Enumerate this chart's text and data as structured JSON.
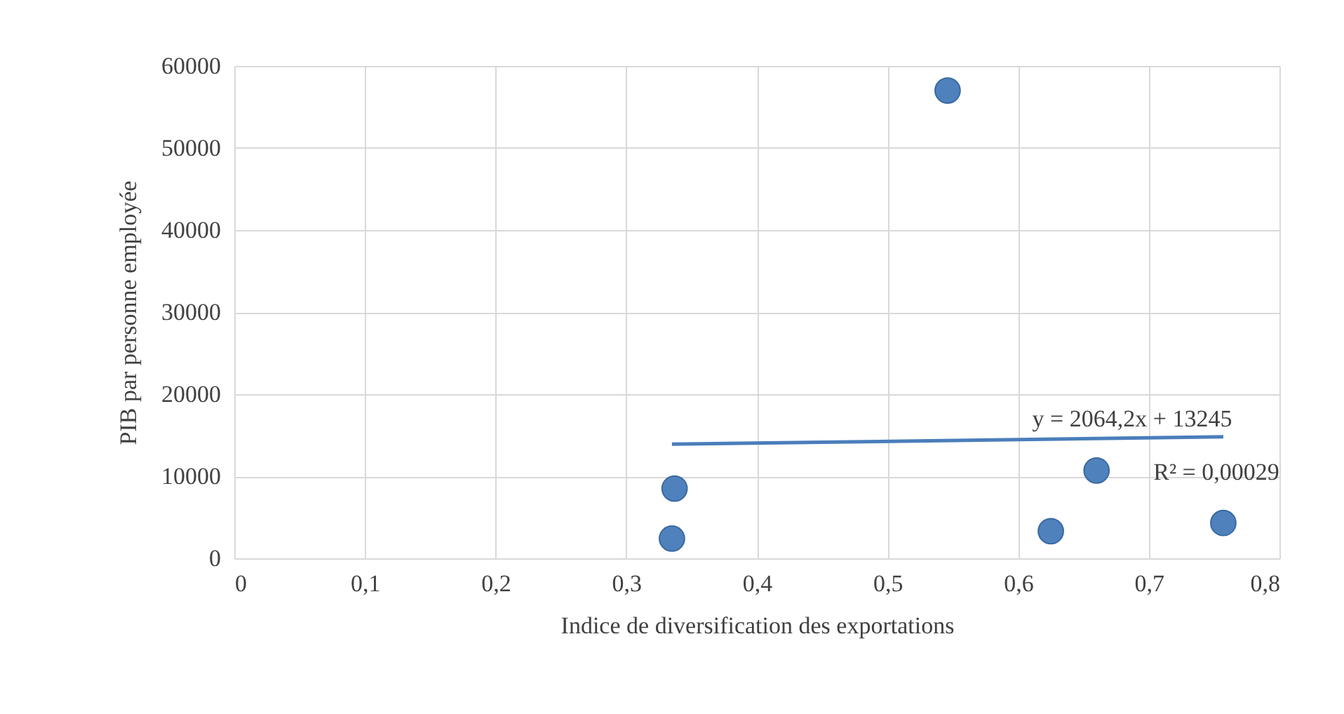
{
  "chart_data": {
    "type": "scatter",
    "xlabel": "Indice de diversification des exportations",
    "ylabel": "PIB par personne employée",
    "xlim": [
      0,
      0.8
    ],
    "xticks": [
      {
        "value": 0,
        "label": "0"
      },
      {
        "value": 0.1,
        "label": "0,1"
      },
      {
        "value": 0.2,
        "label": "0,2"
      },
      {
        "value": 0.3,
        "label": "0,3"
      },
      {
        "value": 0.4,
        "label": "0,4"
      },
      {
        "value": 0.5,
        "label": "0,5"
      },
      {
        "value": 0.6,
        "label": "0,6"
      },
      {
        "value": 0.7,
        "label": "0,7"
      },
      {
        "value": 0.8,
        "label": "0,8"
      }
    ],
    "ylim": [
      0,
      60000
    ],
    "yticks": [
      0,
      10000,
      20000,
      30000,
      40000,
      50000,
      60000
    ],
    "grid": true,
    "series": [
      {
        "color": "#4f81bd",
        "x": [
          0.337,
          0.335,
          0.546,
          0.625,
          0.66,
          0.757
        ],
        "values": [
          8500,
          2400,
          57000,
          3300,
          10700,
          4300
        ]
      },
      {
        "type": "line",
        "color": "#4a7ebb",
        "x": [
          0.335,
          0.757
        ],
        "values": [
          13900,
          14800
        ]
      }
    ],
    "annotations": [
      "y = 2064,2x + 13245",
      "R² = 0,00029"
    ]
  }
}
